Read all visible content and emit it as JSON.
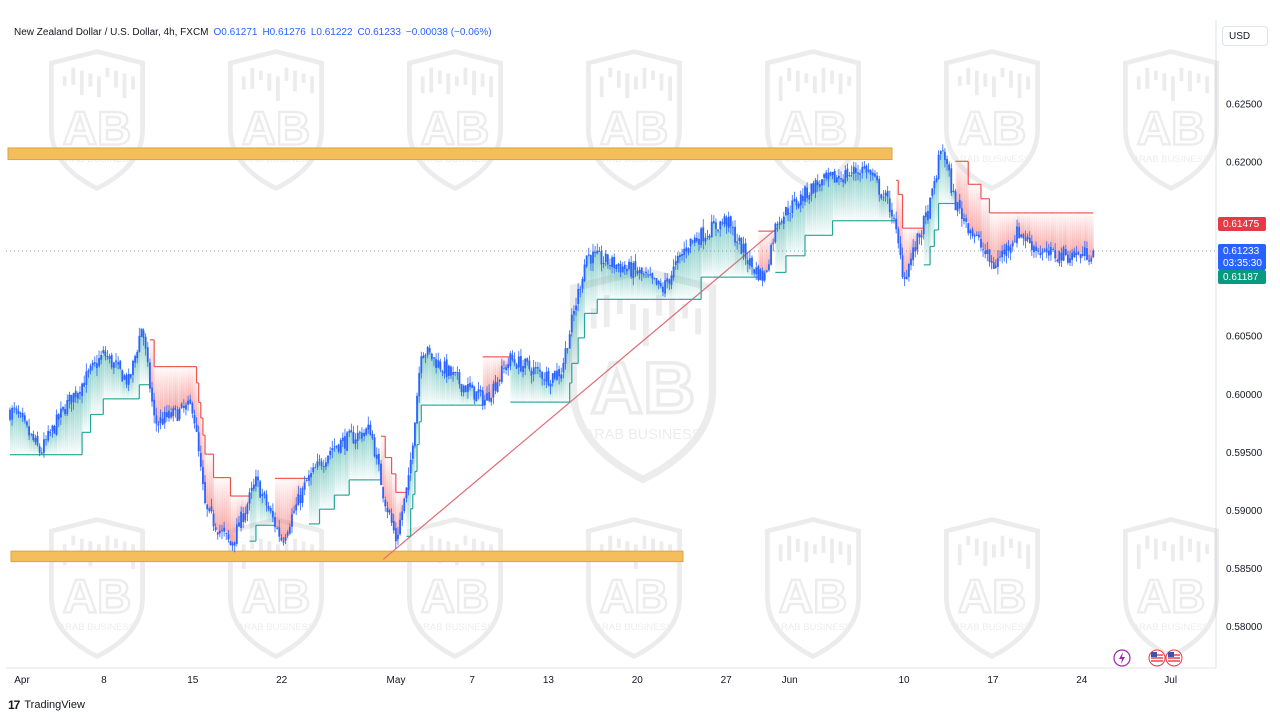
{
  "header": {
    "symbol": "New Zealand Dollar / U.S. Dollar, 4h, FXCM",
    "open": "O0.61271",
    "high": "H0.61276",
    "low": "L0.61222",
    "close": "C0.61233",
    "change": "−0.00038 (−0.06%)"
  },
  "currency_button": "USD",
  "price_tags": {
    "level": "0.61475",
    "last": "0.61233",
    "countdown": "03:35:30",
    "trail": "0.61187"
  },
  "footer": {
    "logo_text": "TradingView",
    "logo_mark": "17"
  },
  "watermark": {
    "brand": "AB",
    "text": "ARAB BUSINESS",
    "subtext": "COMPANY L.L.C"
  },
  "icons": [
    "lightning-icon",
    "us-flag-icon",
    "us-flag-icon"
  ],
  "colors": {
    "bull": "#2962ff",
    "zone": "#f5be5c",
    "zone_border": "#d9a640",
    "trend_line": "#e06c75",
    "supertrend_up": "#26a69a",
    "supertrend_down": "#ef5350",
    "tag_red": "#e53945",
    "tag_blue": "#2962ff",
    "tag_green": "#089981"
  },
  "chart_data": {
    "type": "candlestick",
    "symbol": "NZDUSD",
    "timeframe": "4h",
    "y_ticks": [
      "0.62500",
      "0.62000",
      "0.60500",
      "0.60000",
      "0.59500",
      "0.59000",
      "0.58500",
      "0.58000"
    ],
    "y_tick_values": [
      0.625,
      0.62,
      0.605,
      0.6,
      0.595,
      0.59,
      0.585,
      0.58
    ],
    "x_ticks": [
      "Apr",
      "8",
      "15",
      "22",
      "May",
      "7",
      "13",
      "20",
      "27",
      "Jun",
      "10",
      "17",
      "24",
      "Jul"
    ],
    "ylim": [
      0.5775,
      0.6295
    ],
    "price_path": [
      [
        "2024-04-01",
        0.5985
      ],
      [
        "2024-04-03",
        0.595
      ],
      [
        "2024-04-05",
        0.599
      ],
      [
        "2024-04-08",
        0.6035
      ],
      [
        "2024-04-10",
        0.601
      ],
      [
        "2024-04-11",
        0.606
      ],
      [
        "2024-04-12",
        0.5975
      ],
      [
        "2024-04-15",
        0.599
      ],
      [
        "2024-04-16",
        0.59
      ],
      [
        "2024-04-18",
        0.587
      ],
      [
        "2024-04-20",
        0.5925
      ],
      [
        "2024-04-22",
        0.5875
      ],
      [
        "2024-04-24",
        0.5925
      ],
      [
        "2024-04-26",
        0.5955
      ],
      [
        "2024-04-29",
        0.597
      ],
      [
        "2024-04-30",
        0.5915
      ],
      [
        "2024-05-01",
        0.5875
      ],
      [
        "2024-05-02",
        0.5925
      ],
      [
        "2024-05-03",
        0.604
      ],
      [
        "2024-05-06",
        0.601
      ],
      [
        "2024-05-08",
        0.5995
      ],
      [
        "2024-05-10",
        0.603
      ],
      [
        "2024-05-13",
        0.6015
      ],
      [
        "2024-05-14",
        0.602
      ],
      [
        "2024-05-16",
        0.612
      ],
      [
        "2024-05-20",
        0.6105
      ],
      [
        "2024-05-22",
        0.609
      ],
      [
        "2024-05-24",
        0.613
      ],
      [
        "2024-05-27",
        0.615
      ],
      [
        "2024-05-29",
        0.611
      ],
      [
        "2024-05-30",
        0.61
      ],
      [
        "2024-05-31",
        0.615
      ],
      [
        "2024-06-03",
        0.618
      ],
      [
        "2024-06-07",
        0.6195
      ],
      [
        "2024-06-09",
        0.616
      ],
      [
        "2024-06-10",
        0.61
      ],
      [
        "2024-06-12",
        0.616
      ],
      [
        "2024-06-13",
        0.6215
      ],
      [
        "2024-06-14",
        0.6165
      ],
      [
        "2024-06-17",
        0.611
      ],
      [
        "2024-06-19",
        0.614
      ],
      [
        "2024-06-21",
        0.612
      ],
      [
        "2024-06-24",
        0.612
      ],
      [
        "2024-06-25",
        0.6123
      ]
    ],
    "resistance_zone": [
      0.6202,
      0.6212
    ],
    "support_zone": [
      0.5856,
      0.5865
    ],
    "trend_line": [
      [
        "2024-04-30",
        0.5858
      ],
      [
        "2024-05-31",
        0.6143
      ]
    ],
    "last_price": 0.61233,
    "level_price": 0.61475,
    "trail_price": 0.61187
  }
}
